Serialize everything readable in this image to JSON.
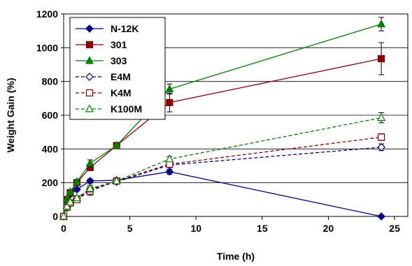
{
  "chart_data": {
    "type": "line",
    "xlabel": "Time (h)",
    "ylabel": "Weight Gain (%)",
    "xlim": [
      0,
      26
    ],
    "ylim": [
      0,
      1200
    ],
    "x_ticks": [
      "0",
      "5",
      "10",
      "15",
      "20",
      "25"
    ],
    "y_ticks": [
      "0",
      "200",
      "400",
      "600",
      "800",
      "1000",
      "1200"
    ],
    "grid": "horizontal",
    "legend_position": "top-left",
    "series": [
      {
        "name": "N-12K",
        "color": "#000080",
        "marker": "diamond-filled",
        "dash": "solid",
        "x": [
          0,
          0.25,
          0.5,
          1,
          2,
          4,
          8,
          24
        ],
        "y": [
          0,
          90,
          130,
          160,
          210,
          215,
          265,
          0
        ],
        "err": [
          0,
          10,
          10,
          10,
          12,
          12,
          15,
          0
        ]
      },
      {
        "name": "301",
        "color": "#8B0000",
        "marker": "square-filled",
        "dash": "solid",
        "x": [
          0,
          0.25,
          0.5,
          1,
          2,
          4,
          8,
          24
        ],
        "y": [
          0,
          100,
          140,
          200,
          290,
          420,
          675,
          935
        ],
        "err": [
          0,
          10,
          10,
          12,
          18,
          15,
          55,
          95
        ]
      },
      {
        "name": "303",
        "color": "#008000",
        "marker": "triangle-filled",
        "dash": "solid",
        "x": [
          0,
          0.25,
          0.5,
          1,
          2,
          4,
          8,
          24
        ],
        "y": [
          0,
          105,
          145,
          205,
          315,
          420,
          755,
          1140
        ],
        "err": [
          0,
          10,
          10,
          12,
          20,
          15,
          30,
          40
        ]
      },
      {
        "name": "E4M",
        "color": "#000080",
        "marker": "diamond-open",
        "dash": "dashed",
        "x": [
          0,
          0.25,
          0.5,
          1,
          2,
          4,
          8,
          24
        ],
        "y": [
          0,
          50,
          75,
          105,
          160,
          205,
          305,
          410
        ],
        "err": [
          0,
          10,
          10,
          12,
          15,
          12,
          15,
          20
        ]
      },
      {
        "name": "K4M",
        "color": "#8B0000",
        "marker": "square-open",
        "dash": "dashed",
        "x": [
          0,
          0.25,
          0.5,
          1,
          2,
          4,
          8,
          24
        ],
        "y": [
          0,
          55,
          80,
          100,
          150,
          210,
          310,
          470
        ],
        "err": [
          0,
          10,
          10,
          12,
          25,
          12,
          15,
          20
        ]
      },
      {
        "name": "K100M",
        "color": "#008000",
        "marker": "triangle-open",
        "dash": "dashed",
        "x": [
          0,
          0.25,
          0.5,
          1,
          2,
          4,
          8,
          24
        ],
        "y": [
          0,
          60,
          85,
          110,
          165,
          210,
          340,
          585
        ],
        "err": [
          0,
          10,
          10,
          12,
          20,
          12,
          15,
          30
        ]
      }
    ]
  }
}
